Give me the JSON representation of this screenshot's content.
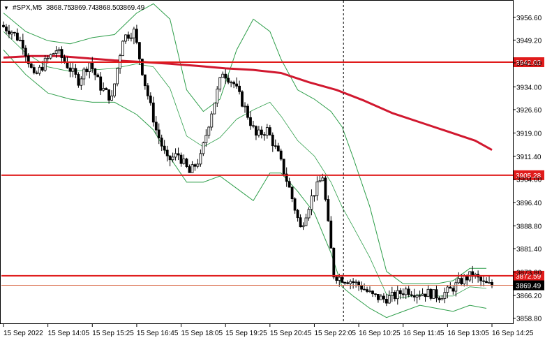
{
  "header": {
    "symbol": "#SPX,M5",
    "open": "3868.75",
    "high": "3869.74",
    "low": "3868.50",
    "close": "3869.49"
  },
  "colors": {
    "candle": "#000000",
    "bands": "#2e9e4a",
    "ma": "#d1182f",
    "levels": "#e01b1b",
    "current_price_line": "#d96c4c",
    "current_price_tag": "#000000",
    "divider": "#000000"
  },
  "chart_data": {
    "type": "candlestick",
    "timeframe": "M5",
    "ylim": [
      3856.9,
      3962.0
    ],
    "y_ticks": [
      "3956.60",
      "3949.20",
      "3941.80",
      "3934.00",
      "3926.60",
      "3919.00",
      "3911.40",
      "3904.00",
      "3896.40",
      "3888.80",
      "3881.40",
      "3873.80",
      "3866.20",
      "3858.80"
    ],
    "x_labels": [
      "15 Sep 2022",
      "15 Sep 14:05",
      "15 Sep 15:25",
      "15 Sep 16:45",
      "15 Sep 18:05",
      "15 Sep 19:25",
      "15 Sep 20:45",
      "15 Sep 22:05",
      "16 Sep 10:25",
      "16 Sep 11:45",
      "16 Sep 13:05",
      "16 Sep 14:25"
    ],
    "x_label_bars": [
      0,
      16,
      32,
      48,
      64,
      80,
      96,
      112,
      128,
      144,
      160,
      176
    ],
    "session_break_bar": 122.5,
    "levels": [
      {
        "value": 3942.02,
        "label": "3942.02"
      },
      {
        "value": 3905.28,
        "label": "3905.28"
      },
      {
        "value": 3872.59,
        "label": "3872.59"
      }
    ],
    "current_price": {
      "value": 3869.49,
      "label": "3869.49"
    },
    "ma": {
      "x": [
        0,
        10,
        20,
        30,
        40,
        50,
        60,
        70,
        80,
        90,
        100,
        110,
        120,
        130,
        140,
        150,
        160,
        170,
        176
      ],
      "y": [
        3943.5,
        3944.0,
        3944.0,
        3943.3,
        3942.6,
        3942.1,
        3941.5,
        3940.8,
        3940.0,
        3939.5,
        3938.5,
        3935.5,
        3933.0,
        3929.5,
        3925.5,
        3922.5,
        3919.5,
        3916.5,
        3913.5
      ]
    },
    "bands": {
      "x": [
        0,
        8,
        16,
        24,
        32,
        40,
        48,
        54,
        60,
        66,
        72,
        78,
        84,
        90,
        96,
        100,
        106,
        112,
        118,
        122,
        126,
        132,
        138,
        144,
        150,
        156,
        162,
        168,
        174
      ],
      "upper": [
        3958,
        3952,
        3949,
        3948,
        3950,
        3951,
        3958,
        3961,
        3956,
        3933,
        3926,
        3930,
        3946,
        3956,
        3952,
        3943,
        3933,
        3930,
        3926,
        3921,
        3911,
        3895,
        3874,
        3870,
        3870,
        3870,
        3871,
        3875,
        3875
      ],
      "lower": [
        3946,
        3938,
        3932,
        3930,
        3929,
        3929,
        3925,
        3920,
        3911,
        3903,
        3903,
        3905,
        3901,
        3897,
        3906,
        3906,
        3900,
        3893,
        3880,
        3869,
        3866,
        3862,
        3859,
        3861,
        3863,
        3862,
        3861,
        3863,
        3862
      ]
    },
    "ohlc": {
      "x": [
        0,
        4,
        8,
        12,
        16,
        20,
        24,
        28,
        32,
        36,
        40,
        44,
        48,
        52,
        56,
        60,
        64,
        68,
        72,
        76,
        80,
        84,
        88,
        92,
        96,
        100,
        104,
        108,
        112,
        116,
        120,
        122,
        126,
        130,
        134,
        138,
        142,
        146,
        150,
        154,
        158,
        162,
        166,
        170,
        174,
        176
      ],
      "y": [
        3954,
        3952,
        3948,
        3937,
        3942,
        3946,
        3941,
        3936,
        3942,
        3934,
        3930,
        3950,
        3952,
        3935,
        3920,
        3910,
        3912,
        3906,
        3911,
        3926,
        3939,
        3935,
        3927,
        3918,
        3920,
        3912,
        3901,
        3888,
        3898,
        3905,
        3873,
        3872,
        3871,
        3869,
        3866,
        3865,
        3866,
        3868,
        3867,
        3867,
        3866,
        3868,
        3871,
        3873,
        3870,
        3869.5
      ]
    },
    "candles": {
      "count": 177,
      "seed": 7
    }
  }
}
